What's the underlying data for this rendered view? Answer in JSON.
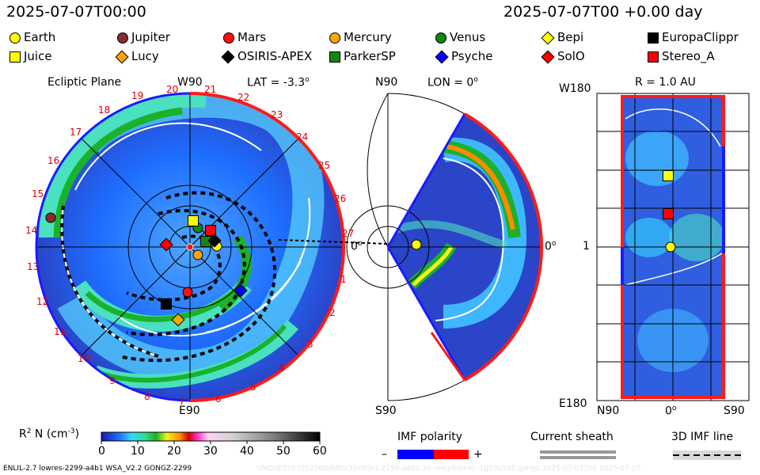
{
  "header": {
    "date_left": "2025-07-07T00:00",
    "date_right": "2025-07-07T00 +0.00 day"
  },
  "legend": [
    {
      "name": "Earth",
      "shape": "circle",
      "color": "#ffff00"
    },
    {
      "name": "Jupiter",
      "shape": "circle",
      "color": "#8b2a2a"
    },
    {
      "name": "Mars",
      "shape": "circle",
      "color": "#ff1010"
    },
    {
      "name": "Mercury",
      "shape": "circle",
      "color": "#ffa500"
    },
    {
      "name": "Venus",
      "shape": "circle",
      "color": "#118811"
    },
    {
      "name": "Bepi",
      "shape": "diamond",
      "color": "#ffff00"
    },
    {
      "name": "EuropaClippr",
      "shape": "square",
      "color": "#000000"
    },
    {
      "name": "Juice",
      "shape": "square",
      "color": "#ffff00"
    },
    {
      "name": "Lucy",
      "shape": "diamond",
      "color": "#ffa500"
    },
    {
      "name": "OSIRIS-APEX",
      "shape": "diamond",
      "color": "#000000"
    },
    {
      "name": "ParkerSP",
      "shape": "square",
      "color": "#118811"
    },
    {
      "name": "Psyche",
      "shape": "diamond",
      "color": "#0000ff"
    },
    {
      "name": "SolO",
      "shape": "diamond",
      "color": "#ff0000"
    },
    {
      "name": "Stereo_A",
      "shape": "square",
      "color": "#ff0000"
    }
  ],
  "ecliptic": {
    "title": "Ecliptic Plane",
    "top": "W90",
    "lat": "LAT = -3.3",
    "lat_deg": "o",
    "right": "0",
    "right_deg": "o",
    "bottom": "E90",
    "ticks": [
      "20",
      "21",
      "22",
      "23",
      "24",
      "25",
      "26",
      "27",
      "1",
      "2",
      "3",
      "4",
      "5",
      "6",
      "7",
      "8",
      "9",
      "10",
      "11",
      "12",
      "13",
      "14",
      "15",
      "16",
      "17",
      "18",
      "19"
    ]
  },
  "meridional": {
    "top": "N90",
    "lon": "LON = 0",
    "lon_deg": "o",
    "right": "0",
    "right_deg": "o",
    "bottom": "S90"
  },
  "radial": {
    "top_left": "W180",
    "title": "R = 1.0 AU",
    "left": "1",
    "bottom_left": "E180",
    "bottom_n": "N90",
    "bottom_mid": "0",
    "bottom_mid_deg": "o",
    "bottom_s": "S90"
  },
  "colorbar": {
    "label": "R",
    "label_sup": "2",
    "label_rest": " N (cm",
    "label_sup2": "-3",
    "label_end": ")",
    "ticks": [
      "0",
      "10",
      "20",
      "30",
      "40",
      "50",
      "60"
    ]
  },
  "imf": {
    "title": "IMF polarity",
    "minus": "–",
    "plus": "+",
    "colors": [
      "#0000ff",
      "#ff0000"
    ]
  },
  "sheath": {
    "title": "Current sheath"
  },
  "imfline": {
    "title": "3D IMF line"
  },
  "footer": {
    "left": "ENLIL-2.7 lowres-2299-a4b1 WSA_V2.2 GONGZ-2299",
    "right": "UNQUE0707202500/840x30x90x1.2299-a4b1.16--mcpfunnel--1g53q5d2.gongz-2025-07-07T00 2025-07-07"
  }
}
